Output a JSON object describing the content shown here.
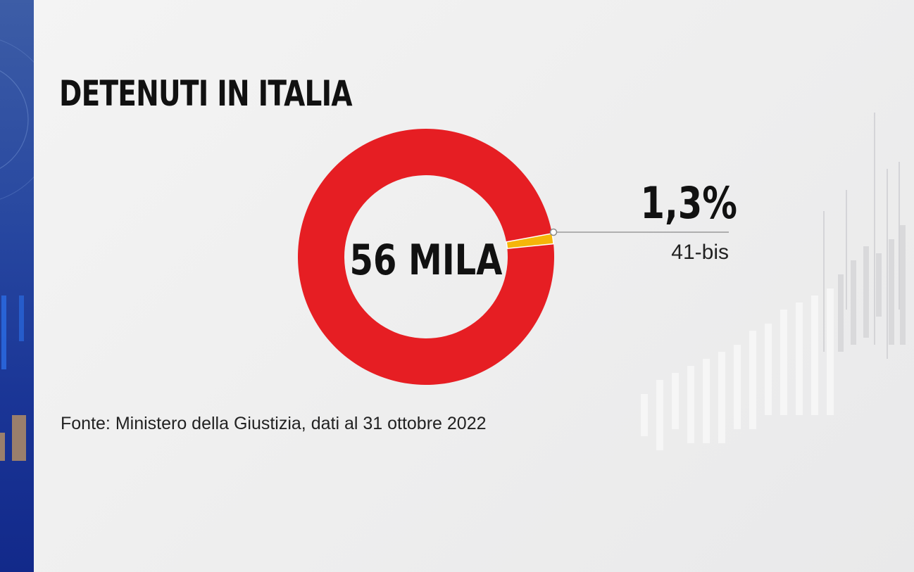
{
  "colors": {
    "main": "#e61e23",
    "highlight": "#f5b50a",
    "text": "#111111",
    "panel": "#1e3a99"
  },
  "chart_data": {
    "type": "pie",
    "title": "DETENUTI IN ITALIA",
    "center_label": "56 MILA",
    "slices": [
      {
        "label": "",
        "value": 98.7
      },
      {
        "label": "41-bis",
        "value": 1.3,
        "value_label": "1,3%"
      }
    ],
    "source": "Fonte: Ministero della Giustizia, dati al 31 ottobre 2022"
  }
}
